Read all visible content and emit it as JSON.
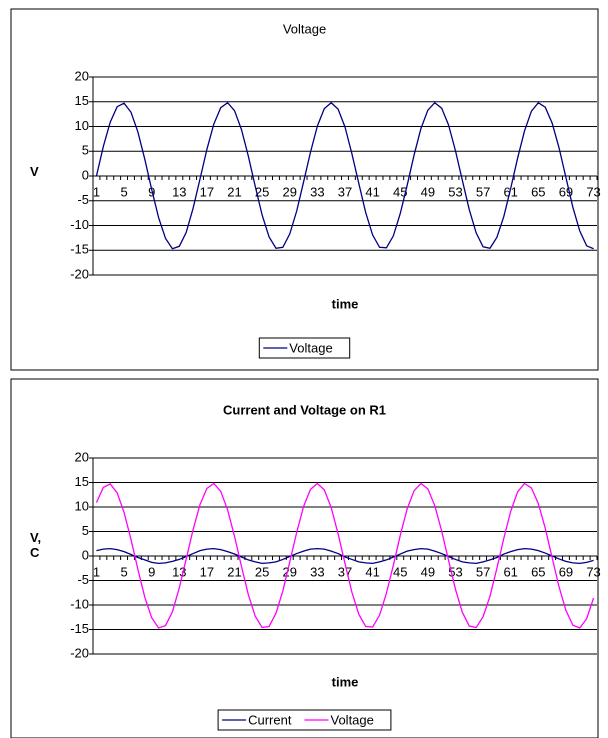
{
  "chart_data": [
    {
      "type": "line",
      "title": "Voltage",
      "y_label": "V",
      "x_label": "time",
      "categories": [
        "1",
        null,
        null,
        null,
        "5",
        null,
        null,
        null,
        "9",
        null,
        null,
        null,
        "13",
        null,
        null,
        null,
        "17",
        null,
        null,
        null,
        "21",
        null,
        null,
        null,
        "25",
        null,
        null,
        null,
        "29",
        null,
        null,
        null,
        "33",
        null,
        null,
        null,
        "37",
        null,
        null,
        null,
        "41",
        null,
        null,
        null,
        "45",
        null,
        null,
        null,
        "49",
        null,
        null,
        null,
        "53",
        null,
        null,
        null,
        "57",
        null,
        null,
        null,
        "61",
        null,
        null,
        null,
        "65",
        null,
        null,
        null,
        "69",
        null,
        null,
        null,
        "73"
      ],
      "series": [
        {
          "name": "Voltage",
          "color": "#000080",
          "values": [
            0,
            6.0,
            10.9,
            14.0,
            14.7,
            12.9,
            8.9,
            3.4,
            -2.7,
            -8.4,
            -12.6,
            -14.7,
            -14.2,
            -11.4,
            -6.5,
            -0.6,
            5.4,
            10.5,
            13.8,
            14.8,
            13.2,
            9.4,
            4.0,
            -2.1,
            -7.9,
            -12.3,
            -14.6,
            -14.4,
            -11.7,
            -7.1,
            -1.2,
            4.8,
            10.1,
            13.6,
            14.8,
            13.5,
            9.9,
            4.5,
            -1.5,
            -7.4,
            -11.9,
            -14.4,
            -14.5,
            -12.1,
            -7.6,
            -1.9,
            4.2,
            9.6,
            13.3,
            14.8,
            13.7,
            10.3,
            5.1,
            -0.9,
            -6.8,
            -11.5,
            -14.3,
            -14.6,
            -12.4,
            -8.2,
            -2.5,
            3.6,
            9.1,
            13.1,
            14.8,
            13.9,
            10.7,
            5.7,
            -0.3,
            -6.3,
            -11.1,
            -14.1,
            -14.7
          ]
        }
      ],
      "ylim": [
        -20,
        20
      ],
      "yticks": [
        -20,
        -15,
        -10,
        -5,
        0,
        5,
        10,
        15,
        20
      ],
      "grid": true,
      "legend": "bottom"
    },
    {
      "type": "line",
      "title": "Current and Voltage on R1",
      "y_label": "V, C",
      "x_label": "time",
      "categories": [
        "1",
        null,
        null,
        null,
        "5",
        null,
        null,
        null,
        "9",
        null,
        null,
        null,
        "13",
        null,
        null,
        null,
        "17",
        null,
        null,
        null,
        "21",
        null,
        null,
        null,
        "25",
        null,
        null,
        null,
        "29",
        null,
        null,
        null,
        "33",
        null,
        null,
        null,
        "37",
        null,
        null,
        null,
        "41",
        null,
        null,
        null,
        "45",
        null,
        null,
        null,
        "49",
        null,
        null,
        null,
        "53",
        null,
        null,
        null,
        "57",
        null,
        null,
        null,
        "61",
        null,
        null,
        null,
        "65",
        null,
        null,
        null,
        "69",
        null,
        null,
        null,
        "73"
      ],
      "series": [
        {
          "name": "Current",
          "color": "#000080",
          "values": [
            1.1,
            1.4,
            1.5,
            1.3,
            0.9,
            0.3,
            -0.3,
            -0.8,
            -1.3,
            -1.5,
            -1.4,
            -1.1,
            -0.7,
            -0.1,
            0.5,
            1.1,
            1.4,
            1.5,
            1.3,
            0.9,
            0.4,
            -0.2,
            -0.8,
            -1.2,
            -1.5,
            -1.4,
            -1.2,
            -0.7,
            -0.1,
            0.5,
            1.0,
            1.4,
            1.5,
            1.4,
            1.0,
            0.5,
            -0.2,
            -0.7,
            -1.2,
            -1.4,
            -1.5,
            -1.2,
            -0.8,
            -0.2,
            0.4,
            1.0,
            1.3,
            1.5,
            1.4,
            1.0,
            0.5,
            -0.1,
            -0.7,
            -1.2,
            -1.4,
            -1.5,
            -1.2,
            -0.8,
            -0.3,
            0.4,
            0.9,
            1.3,
            1.5,
            1.4,
            1.1,
            0.6,
            0,
            -0.6,
            -1.1,
            -1.4,
            -1.5,
            -1.3,
            -0.9
          ]
        },
        {
          "name": "Voltage",
          "color": "#ff00ff",
          "values": [
            10.9,
            14.0,
            14.7,
            12.9,
            8.9,
            3.4,
            -2.7,
            -8.4,
            -12.6,
            -14.7,
            -14.2,
            -11.4,
            -6.5,
            -0.6,
            5.4,
            10.5,
            13.8,
            14.8,
            13.2,
            9.4,
            4.0,
            -2.1,
            -7.9,
            -12.3,
            -14.6,
            -14.4,
            -11.7,
            -7.1,
            -1.2,
            4.8,
            10.1,
            13.6,
            14.8,
            13.5,
            9.9,
            4.5,
            -1.5,
            -7.4,
            -11.9,
            -14.4,
            -14.5,
            -12.1,
            -7.6,
            -1.9,
            4.2,
            9.6,
            13.3,
            14.8,
            13.7,
            10.3,
            5.1,
            -0.9,
            -6.8,
            -11.5,
            -14.3,
            -14.6,
            -12.4,
            -8.2,
            -2.5,
            3.6,
            9.1,
            13.1,
            14.8,
            13.9,
            10.7,
            5.7,
            -0.3,
            -6.3,
            -11.1,
            -14.1,
            -14.7,
            -12.8,
            -8.6
          ]
        }
      ],
      "ylim": [
        -20,
        20
      ],
      "yticks": [
        -20,
        -15,
        -10,
        -5,
        0,
        5,
        10,
        15,
        20
      ],
      "grid": true,
      "legend": "bottom"
    }
  ]
}
